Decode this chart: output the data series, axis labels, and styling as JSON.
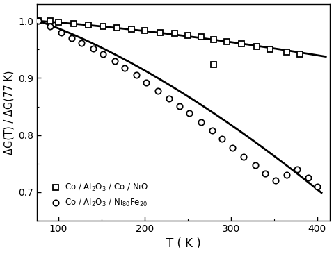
{
  "title": "",
  "xlabel": "T ( K )",
  "ylabel": "ΔG(T) / ΔG(77 K)",
  "xlim": [
    75,
    415
  ],
  "ylim": [
    0.65,
    1.03
  ],
  "xticks": [
    100,
    200,
    300,
    400
  ],
  "yticks": [
    0.7,
    0.8,
    0.9,
    1.0
  ],
  "square_data_x": [
    77,
    90,
    100,
    118,
    135,
    152,
    168,
    185,
    200,
    218,
    235,
    250,
    265,
    280,
    295,
    312,
    330,
    345,
    365,
    380
  ],
  "square_data_y": [
    1.0,
    1.0,
    0.998,
    0.996,
    0.993,
    0.99,
    0.988,
    0.986,
    0.983,
    0.98,
    0.978,
    0.975,
    0.972,
    0.968,
    0.964,
    0.96,
    0.955,
    0.95,
    0.945,
    0.942
  ],
  "outlier_square_x": [
    280
  ],
  "outlier_square_y": [
    0.924
  ],
  "circle_data_x": [
    77,
    90,
    103,
    115,
    127,
    140,
    152,
    165,
    177,
    190,
    202,
    215,
    228,
    240,
    252,
    265,
    278,
    290,
    302,
    315,
    328,
    340,
    352,
    365,
    377,
    390,
    400
  ],
  "circle_data_y": [
    1.0,
    0.99,
    0.98,
    0.97,
    0.961,
    0.952,
    0.942,
    0.93,
    0.918,
    0.905,
    0.892,
    0.878,
    0.864,
    0.851,
    0.838,
    0.823,
    0.808,
    0.793,
    0.778,
    0.762,
    0.747,
    0.733,
    0.72,
    0.73,
    0.74,
    0.726,
    0.71
  ],
  "curve1_A": 4.02e-05,
  "curve2_A": 4.028e-05,
  "legend_square_label": "Co / Al$_2$O$_3$ / Co / NiO",
  "legend_circle_label": "Co / Al$_2$O$_3$ / Ni$_{80}$Fe$_{20}$",
  "marker_size": 6,
  "line_width": 2.0,
  "background_color": "#ffffff",
  "line_color": "#000000",
  "marker_color": "#000000"
}
